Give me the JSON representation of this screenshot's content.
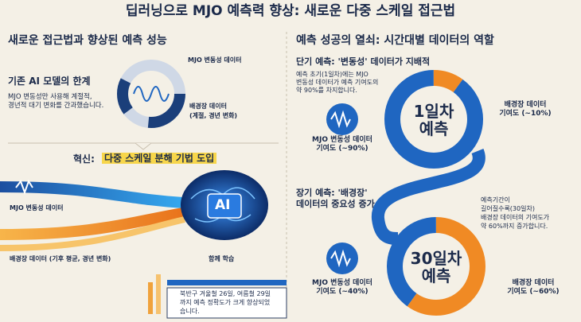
{
  "title": "딥러닝으로 MJO 예측력 향상: 새로운 다중 스케일 접근법",
  "left": {
    "heading": "새로운 접근법과 향상된 예측 성능",
    "limitation": {
      "title": "기존 AI 모델의 한계",
      "lines": [
        "MJO 변동성만 사용해 계절적,",
        "경년적 대기 변화를 간과했습니다."
      ]
    },
    "inputs": {
      "mjo": "MJO 변동성 데이터",
      "background": [
        "배경장 데이터",
        "(계절, 경년 변화)"
      ]
    },
    "innovation": {
      "prefix": "혁신:",
      "highlight": "다중 스케일 분해 기법 도입"
    },
    "flow": {
      "mjo": "MJO 변동성 데이터",
      "background": "배경장 데이터 (기후 평균, 경년 변화)",
      "ai": "AI",
      "joint": "함께 학습"
    },
    "result": [
      "북반구 겨울철 26일, 여름철 29일",
      "까지 예측 정확도가 크게 향상되었",
      "습니다."
    ]
  },
  "right": {
    "heading": "예측 성공의 열쇠: 시간대별 데이터의 역할",
    "short_term": {
      "title": [
        "단기 예측: '변동성' 데이터가 지배적"
      ],
      "lines": [
        "예측 초기(1일차)에는 MJO",
        "변동성 데이터가 예측 기여도의",
        "약 90%를 차지합니다."
      ],
      "center": [
        "1일차",
        "예측"
      ],
      "segments": [
        {
          "name": [
            "배경장 데이터",
            "기여도 (~10%)"
          ],
          "share": 10,
          "color": "#f08a24"
        },
        {
          "name": [
            "MJO 변동성 데이터",
            "기여도 (~90%)"
          ],
          "share": 90,
          "color": "#1f66c1"
        }
      ]
    },
    "long_term": {
      "title": [
        "장기 예측: '배경장'",
        "데이터의 중요성 증가"
      ],
      "lines": [
        "예측기간이",
        "길어질수록(30일차)",
        "배경장 데이터의 기여도가",
        "약 60%까지 증가합니다."
      ],
      "center": [
        "30일차",
        "예측"
      ],
      "segments": [
        {
          "name": [
            "배경장 데이터",
            "기여도 (~60%)"
          ],
          "share": 60,
          "color": "#f08a24"
        },
        {
          "name": [
            "MJO 변동성 데이터",
            "기여도 (~40%)"
          ],
          "share": 40,
          "color": "#1f66c1"
        }
      ]
    }
  }
}
